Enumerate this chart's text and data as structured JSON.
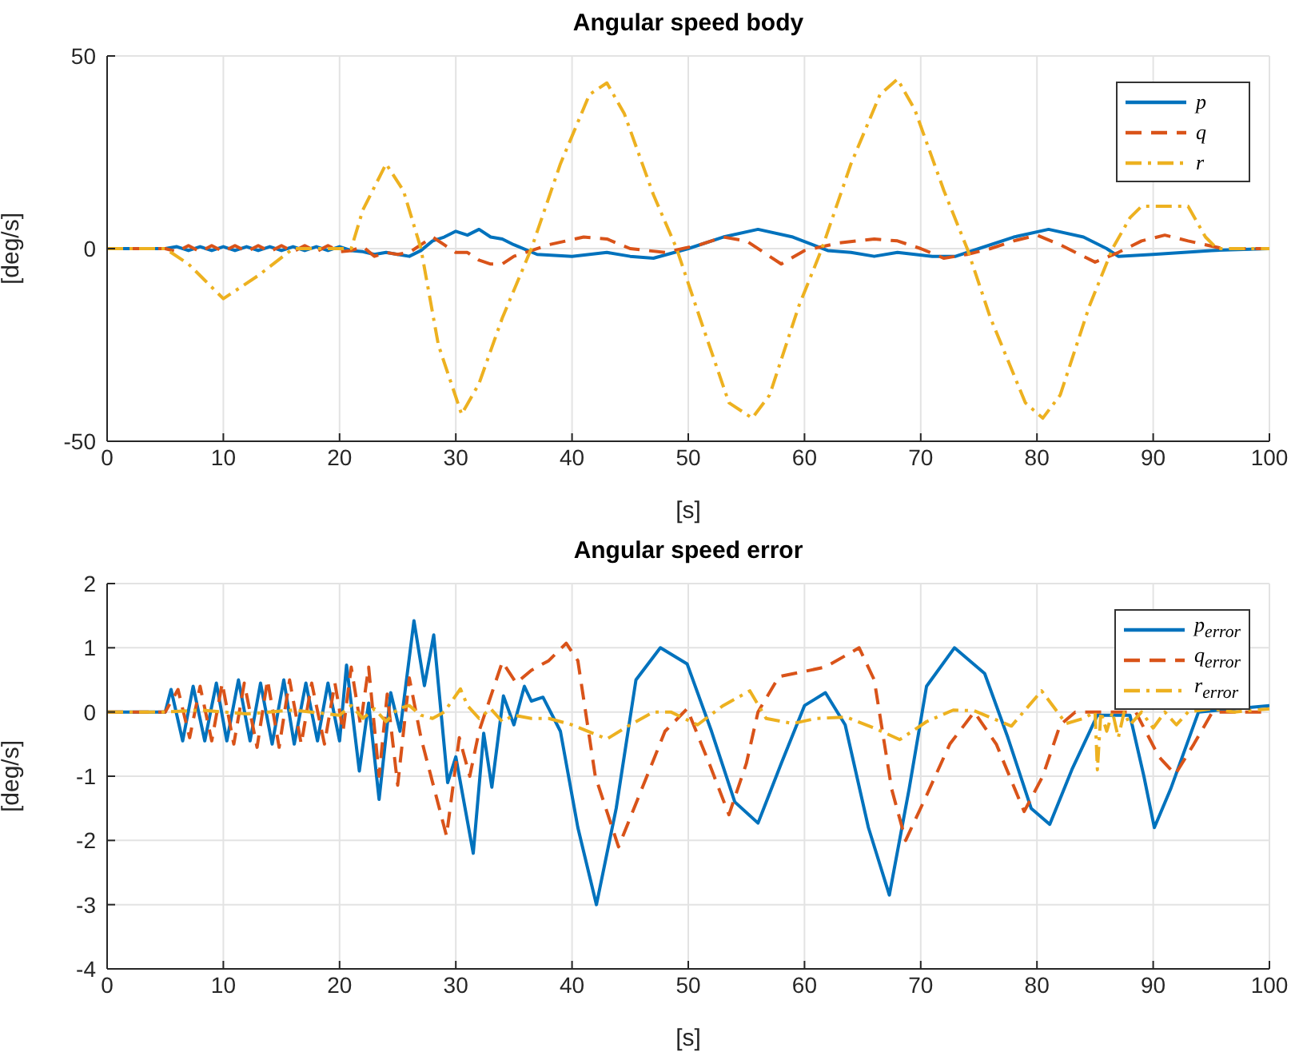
{
  "chart_data": [
    {
      "type": "line",
      "title": "Angular speed body",
      "xlabel": "[s]",
      "ylabel": "[deg/s]",
      "xlim": [
        0,
        100
      ],
      "xticks": [
        0,
        10,
        20,
        30,
        40,
        50,
        60,
        70,
        80,
        90,
        100
      ],
      "ylim": [
        -50,
        50
      ],
      "yticks": [
        -50,
        0,
        50
      ],
      "grid": true,
      "legend": "top right",
      "series": [
        {
          "name": "p",
          "color": "#0072bd",
          "line_style": "solid",
          "x": [
            0,
            5,
            6,
            7,
            8,
            9,
            10,
            11,
            12,
            13,
            14,
            15,
            16,
            17,
            18,
            19,
            20,
            21,
            22,
            23,
            24,
            25,
            26,
            27,
            28,
            29,
            30,
            31,
            32,
            33,
            34,
            35,
            37,
            40,
            43,
            45,
            47,
            50,
            53,
            56,
            59,
            62,
            64,
            66,
            68,
            71,
            73,
            75,
            78,
            81,
            84,
            86,
            87,
            90,
            95,
            100
          ],
          "values": [
            0,
            0,
            0.5,
            -0.5,
            0.5,
            -0.5,
            0.5,
            -0.5,
            0.5,
            -0.5,
            0.5,
            -0.5,
            0.5,
            -0.5,
            0.5,
            -0.5,
            0.5,
            -0.5,
            -0.8,
            -1.5,
            -1,
            -1.5,
            -2,
            -0.5,
            2,
            3,
            4.5,
            3.5,
            5,
            3,
            2.5,
            1,
            -1.5,
            -2,
            -1,
            -2,
            -2.5,
            0,
            3,
            5,
            3,
            -0.5,
            -1,
            -2,
            -1,
            -2,
            -2,
            0,
            3,
            5,
            3,
            0,
            -2,
            -1.5,
            -0.5,
            0
          ]
        },
        {
          "name": "q",
          "color": "#d95319",
          "line_style": "dashed",
          "x": [
            0,
            5,
            6,
            7,
            8,
            9,
            10,
            11,
            12,
            13,
            14,
            15,
            16,
            17,
            18,
            19,
            20,
            21,
            22,
            23,
            24,
            25,
            26,
            27,
            28,
            29,
            30,
            31,
            32,
            33,
            34,
            35,
            38,
            41,
            43,
            45,
            48,
            51,
            53,
            55,
            58,
            60,
            63,
            66,
            68,
            70,
            72,
            74,
            76,
            78,
            80,
            82,
            85,
            87,
            89,
            91,
            93,
            96,
            100
          ],
          "values": [
            0,
            0,
            -0.8,
            0.8,
            -0.8,
            0.8,
            -0.8,
            0.8,
            -0.8,
            0.8,
            -0.8,
            0.8,
            -0.8,
            0.8,
            -0.8,
            0.8,
            -0.8,
            -0.5,
            0.5,
            -2,
            -1,
            -1.5,
            -1,
            1,
            3,
            1,
            -1,
            -1,
            -3,
            -4,
            -4,
            -2,
            1,
            3,
            2.5,
            0,
            -1,
            1,
            3,
            2,
            -4,
            -0.5,
            1.5,
            2.5,
            2,
            0,
            -2.5,
            -1.5,
            0,
            2,
            3.5,
            1,
            -3.5,
            -1,
            2,
            3.5,
            2,
            0,
            0
          ]
        },
        {
          "name": "r",
          "color": "#edb120",
          "line_style": "dashdot",
          "x": [
            0,
            5,
            7,
            10,
            13,
            16,
            21,
            22,
            24,
            25.5,
            27,
            28.5,
            30.5,
            32,
            34,
            36.5,
            39,
            41.5,
            43,
            44.5,
            47,
            49,
            51,
            53.5,
            55.5,
            57,
            59.5,
            61.5,
            64,
            66.5,
            68,
            69.5,
            72,
            74,
            76,
            79,
            80.5,
            82,
            84.5,
            86.5,
            88,
            89,
            93,
            94.5,
            95.5,
            100
          ],
          "values": [
            0,
            0,
            -4,
            -13,
            -7,
            0,
            0,
            10,
            22,
            15,
            0,
            -25,
            -43,
            -35,
            -18,
            0,
            22,
            40,
            43,
            35,
            14,
            0,
            -18,
            -40,
            -44,
            -38,
            -15,
            0,
            22,
            40,
            44,
            36,
            15,
            0,
            -18,
            -40,
            -44,
            -38,
            -15,
            0,
            8,
            11,
            11,
            3,
            0,
            0
          ]
        }
      ]
    },
    {
      "type": "line",
      "title": "Angular speed error",
      "xlabel": "[s]",
      "ylabel": "[deg/s]",
      "xlim": [
        0,
        100
      ],
      "xticks": [
        0,
        10,
        20,
        30,
        40,
        50,
        60,
        70,
        80,
        90,
        100
      ],
      "ylim": [
        -4,
        2
      ],
      "yticks": [
        -4,
        -3,
        -2,
        -1,
        0,
        1,
        2
      ],
      "grid": true,
      "legend": "top right",
      "series": [
        {
          "name": "p$_{error}$",
          "color": "#0072bd",
          "line_style": "solid",
          "x": [
            0,
            5,
            5.5,
            6.5,
            7.4,
            8.4,
            9.4,
            10.3,
            11.3,
            12.3,
            13.2,
            14.2,
            15.2,
            16.1,
            17.1,
            18.1,
            19,
            20,
            20.6,
            21.7,
            22.5,
            23.4,
            24.4,
            25.2,
            26.4,
            27.3,
            28.1,
            29.3,
            30,
            31.5,
            32.4,
            33.1,
            34.1,
            35,
            35.9,
            36.5,
            37.5,
            39,
            40.5,
            42.1,
            43.8,
            45.5,
            47.6,
            49.9,
            52,
            54,
            56,
            58,
            60,
            61.8,
            63.5,
            65.5,
            67.3,
            69,
            70.5,
            72.9,
            75.5,
            77.5,
            79.5,
            81.1,
            83,
            85.2,
            88,
            89.2,
            90.1,
            91.5,
            93.9,
            100
          ],
          "values": [
            0,
            0,
            0.35,
            -0.45,
            0.4,
            -0.45,
            0.45,
            -0.45,
            0.5,
            -0.45,
            0.45,
            -0.5,
            0.5,
            -0.5,
            0.45,
            -0.45,
            0.45,
            -0.45,
            0.73,
            -0.92,
            0.14,
            -1.36,
            0.3,
            -0.3,
            1.42,
            0.41,
            1.2,
            -1.1,
            -0.7,
            -2.2,
            -0.33,
            -1.17,
            0.25,
            -0.2,
            0.4,
            0.17,
            0.23,
            -0.3,
            -1.8,
            -3,
            -1.5,
            0.5,
            1,
            0.75,
            -0.3,
            -1.4,
            -1.73,
            -0.8,
            0.1,
            0.3,
            -0.2,
            -1.8,
            -2.85,
            -1.2,
            0.4,
            1,
            0.6,
            -0.4,
            -1.5,
            -1.75,
            -0.9,
            -0.05,
            -0.05,
            -1,
            -1.8,
            -1.2,
            0,
            0.1
          ]
        },
        {
          "name": "q$_{error}$",
          "color": "#d95319",
          "line_style": "dashed",
          "x": [
            0,
            5,
            6.1,
            7.1,
            8,
            9,
            9.9,
            10.9,
            11.8,
            12.9,
            13.8,
            14.8,
            15.7,
            16.7,
            17.6,
            18.7,
            19.6,
            20.3,
            21,
            21.8,
            22.5,
            23.4,
            24.1,
            25,
            26,
            27,
            29.2,
            30.3,
            31.2,
            32,
            34,
            35.2,
            36.5,
            38,
            39.5,
            40.5,
            42,
            44,
            46,
            48,
            49.9,
            51.8,
            53.5,
            55,
            56,
            57.8,
            61.8,
            64.7,
            66,
            67.5,
            68.7,
            70.5,
            72.5,
            74.6,
            76.5,
            78.9,
            80.5,
            82,
            83.3,
            88.5,
            90.5,
            91.9,
            93.5,
            95.1,
            100
          ],
          "values": [
            0,
            0,
            0.35,
            -0.4,
            0.4,
            -0.45,
            0.45,
            -0.5,
            0.45,
            -0.55,
            0.5,
            -0.55,
            0.5,
            -0.5,
            0.45,
            -0.5,
            0.45,
            -0.3,
            0.7,
            -0.2,
            0.7,
            -1,
            0.28,
            -1.14,
            0.53,
            -0.4,
            -1.93,
            -0.4,
            -1,
            -0.3,
            0.78,
            0.45,
            0.65,
            0.8,
            1.07,
            0.8,
            -1,
            -2.1,
            -1.2,
            -0.3,
            0.05,
            -0.8,
            -1.6,
            -0.8,
            0,
            0.55,
            0.7,
            1,
            0.5,
            -1.2,
            -2,
            -1.3,
            -0.5,
            0,
            -0.5,
            -1.55,
            -1,
            -0.2,
            0,
            0,
            -0.7,
            -0.97,
            -0.5,
            0,
            0
          ]
        },
        {
          "name": "r$_{error}$",
          "color": "#edb120",
          "line_style": "dashdot",
          "x": [
            0,
            5,
            8,
            12,
            16,
            20,
            21,
            22,
            23,
            24,
            25,
            26,
            27,
            28,
            29,
            30.4,
            31,
            32,
            33,
            34,
            35,
            36.5,
            38,
            40,
            43,
            45,
            47,
            48.5,
            50.8,
            53,
            55.3,
            56.7,
            59,
            61,
            63.6,
            66,
            68.2,
            70.5,
            72.8,
            74.6,
            77.8,
            80.4,
            82.5,
            84,
            85,
            85.2,
            85.5,
            86,
            86.5,
            87,
            87.5,
            88,
            89,
            90,
            91,
            92,
            93,
            95,
            97,
            100
          ],
          "values": [
            0,
            0,
            0.03,
            -0.03,
            0.03,
            -0.05,
            0.1,
            -0.1,
            0.05,
            -0.15,
            0.05,
            0.1,
            -0.05,
            -0.1,
            0,
            0.36,
            0.1,
            -0.1,
            0.05,
            -0.15,
            -0.05,
            -0.1,
            -0.1,
            -0.2,
            -0.42,
            -0.2,
            0,
            0,
            -0.2,
            0.1,
            0.33,
            -0.1,
            -0.18,
            -0.1,
            -0.08,
            -0.25,
            -0.43,
            -0.15,
            0.03,
            0.02,
            -0.22,
            0.33,
            -0.18,
            -0.1,
            0,
            -0.9,
            0,
            -0.3,
            0,
            -0.4,
            0,
            -0.2,
            0,
            -0.25,
            0,
            -0.2,
            0,
            0.05,
            0,
            0.05
          ]
        }
      ]
    }
  ]
}
